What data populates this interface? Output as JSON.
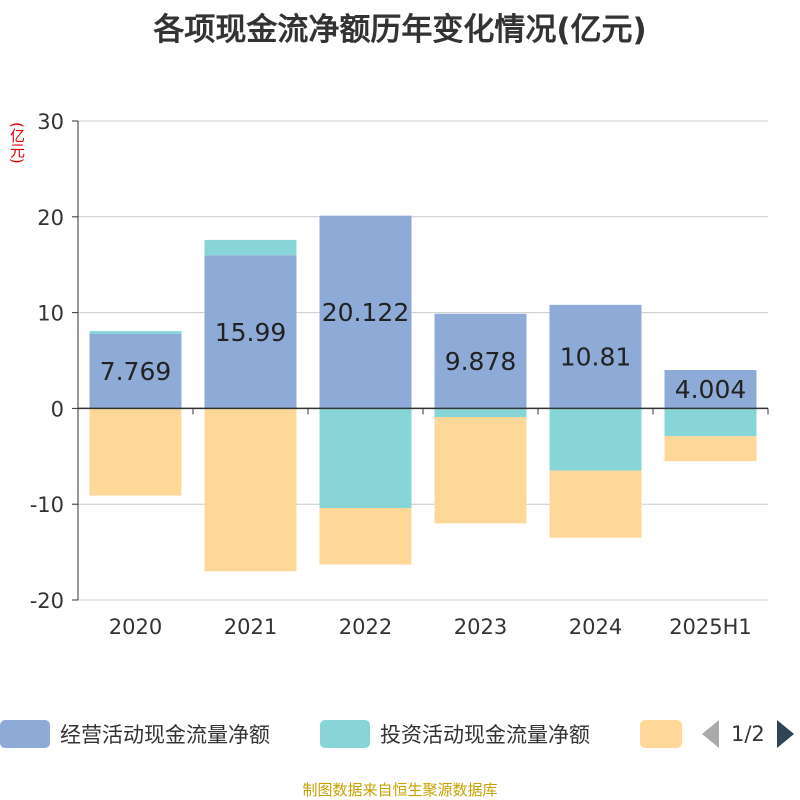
{
  "title": "各项现金流净额历年变化情况(亿元)",
  "unit_label": "(亿元)",
  "source": "制图数据来自恒生聚源数据库",
  "legend": {
    "items": [
      {
        "label": "经营活动现金流量净额",
        "color": "#8eabd8"
      },
      {
        "label": "投资活动现金流量净额",
        "color": "#87d5d6"
      },
      {
        "label": "",
        "color": "#fdd898"
      }
    ],
    "page": "1/2"
  },
  "chart_data": {
    "type": "bar",
    "stacked": true,
    "categories": [
      "2020",
      "2021",
      "2022",
      "2023",
      "2024",
      "2025H1"
    ],
    "ylim": [
      -20,
      30
    ],
    "yticks": [
      30,
      20,
      10,
      0,
      -10,
      -20
    ],
    "ytick_labels": [
      "30",
      "20",
      "10",
      "0",
      "-10",
      "-20"
    ],
    "grid": true,
    "legend_position": "bottom",
    "series": [
      {
        "name": "经营活动现金流量净额",
        "color": "#8eabd8",
        "values": [
          7.769,
          15.99,
          20.122,
          9.878,
          10.81,
          4.004
        ],
        "labels": [
          "7.769",
          "15.99",
          "20.122",
          "9.878",
          "10.81",
          "4.004"
        ]
      },
      {
        "name": "投资活动现金流量净额",
        "color": "#87d5d6",
        "values": [
          0.3,
          1.6,
          -10.4,
          -0.9,
          -6.5,
          -2.9
        ]
      },
      {
        "color": "#fdd898",
        "values": [
          -9.1,
          -17.0,
          -5.9,
          -11.1,
          -7.0,
          -2.6
        ]
      }
    ]
  }
}
